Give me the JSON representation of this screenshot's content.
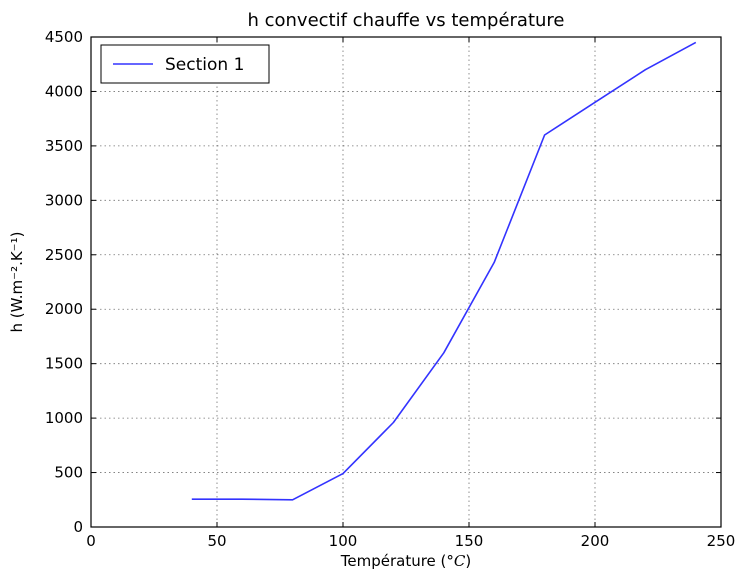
{
  "chart_data": {
    "type": "line",
    "title": "h convectif chauffe vs température",
    "xlabel": "Température (°C)",
    "xlabel_parts": {
      "text": "Température (",
      "unit": "°C",
      "close": ")"
    },
    "ylabel": "h (W.m⁻².K⁻¹)",
    "xlim": [
      0,
      250
    ],
    "ylim": [
      0,
      4500
    ],
    "xticks": [
      0,
      50,
      100,
      150,
      200,
      250
    ],
    "yticks": [
      0,
      500,
      1000,
      1500,
      2000,
      2500,
      3000,
      3500,
      4000,
      4500
    ],
    "grid": true,
    "legend_position": "top-left",
    "series": [
      {
        "name": "Section 1",
        "color": "#3333ff",
        "x": [
          40,
          60,
          80,
          100,
          120,
          140,
          160,
          180,
          200,
          220,
          240
        ],
        "y": [
          255,
          255,
          250,
          490,
          960,
          1600,
          2430,
          3600,
          3900,
          4200,
          4450
        ]
      }
    ]
  }
}
